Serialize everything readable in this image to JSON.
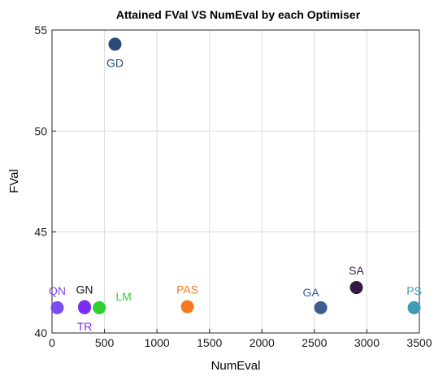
{
  "chart_data": {
    "type": "scatter",
    "title": "Attained FVal VS NumEval by each Optimiser",
    "xlabel": "NumEval",
    "ylabel": "FVal",
    "xlim": [
      0,
      3500
    ],
    "ylim": [
      40,
      55
    ],
    "xticks": [
      "0",
      "500",
      "1000",
      "1500",
      "2000",
      "2500",
      "3000",
      "3500"
    ],
    "yticks": [
      "40",
      "45",
      "50",
      "55"
    ],
    "grid": true,
    "points": [
      {
        "label": "QN",
        "x": 50,
        "y": 41.25,
        "color": "#7b4cf0",
        "label_pos": "above"
      },
      {
        "label": "GN",
        "x": 310,
        "y": 41.3,
        "color": "#6a32e0",
        "label_pos": "above",
        "label_color": "#111111"
      },
      {
        "label": "TR",
        "x": 310,
        "y": 41.25,
        "color": "#7a2df5",
        "label_pos": "below"
      },
      {
        "label": "LM",
        "x": 450,
        "y": 41.25,
        "color": "#2ecf2e",
        "label_pos": "above-right"
      },
      {
        "label": "GD",
        "x": 600,
        "y": 54.3,
        "color": "#2a4a78",
        "label_pos": "below"
      },
      {
        "label": "PAS",
        "x": 1290,
        "y": 41.3,
        "color": "#f37a22",
        "label_pos": "above"
      },
      {
        "label": "GA",
        "x": 2560,
        "y": 41.25,
        "color": "#3a5f90",
        "label_pos": "above-left"
      },
      {
        "label": "SA",
        "x": 2900,
        "y": 42.25,
        "color": "#351a45",
        "label_pos": "above"
      },
      {
        "label": "PS",
        "x": 3450,
        "y": 41.25,
        "color": "#3f9bb5",
        "label_pos": "above"
      }
    ]
  }
}
